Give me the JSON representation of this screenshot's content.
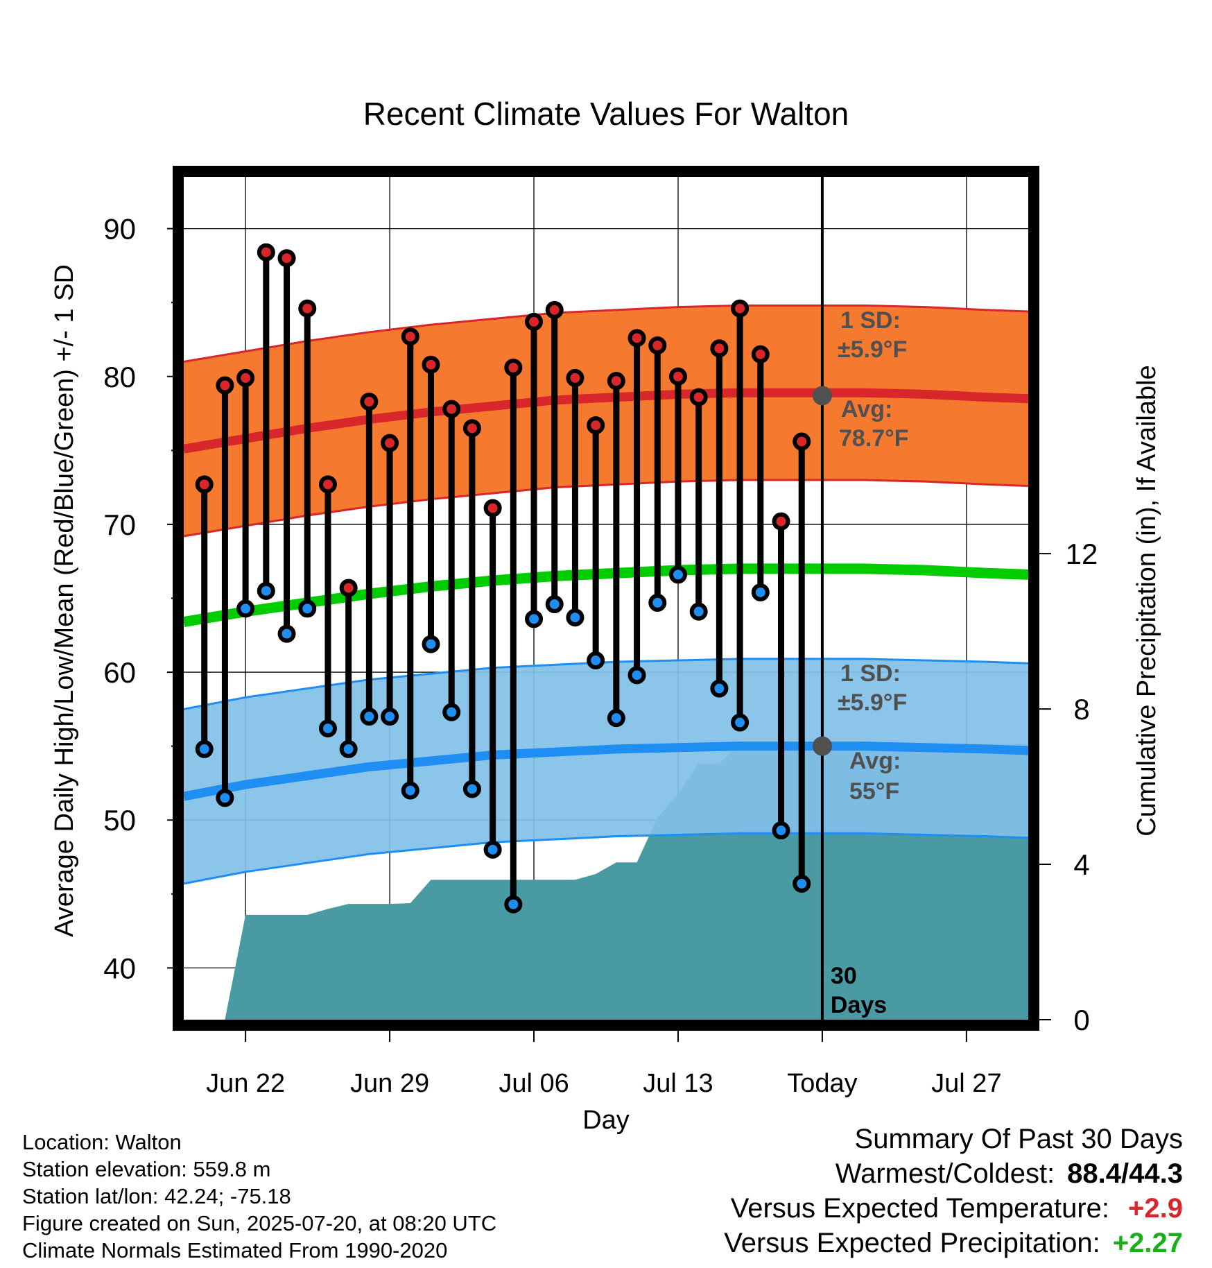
{
  "chart_data": {
    "type": "line",
    "title": "Recent Climate Values For Walton",
    "xlabel": "Day",
    "ylabel": "Average Daily High/Low/Mean (Red/Blue/Green) +/- 1 SD",
    "y2label": "Cumulative Precipitation (in), If Available",
    "ylim": [
      36.5,
      93.5
    ],
    "y2lim": [
      0,
      21.7
    ],
    "xlim": [
      "2025-06-19",
      "2025-07-30"
    ],
    "y_ticks": [
      "40",
      "50",
      "60",
      "70",
      "80",
      "90"
    ],
    "y2_ticks": [
      "0",
      "4",
      "8",
      "12"
    ],
    "x_ticks": [
      {
        "date": "2025-06-22",
        "label": "Jun 22"
      },
      {
        "date": "2025-06-29",
        "label": "Jun 29"
      },
      {
        "date": "2025-07-06",
        "label": "Jul 06"
      },
      {
        "date": "2025-07-13",
        "label": "Jul 13"
      },
      {
        "date": "2025-07-20",
        "label": "Today"
      },
      {
        "date": "2025-07-27",
        "label": "Jul 27"
      }
    ],
    "today": "2025-07-20",
    "days_label": [
      "30",
      "Days"
    ],
    "grid": true,
    "normals": {
      "dates": [
        "2025-06-19",
        "2025-06-22",
        "2025-06-25",
        "2025-06-28",
        "2025-07-01",
        "2025-07-04",
        "2025-07-07",
        "2025-07-10",
        "2025-07-13",
        "2025-07-16",
        "2025-07-19",
        "2025-07-22",
        "2025-07-25",
        "2025-07-28",
        "2025-07-30"
      ],
      "high_avg": [
        75.1,
        75.8,
        76.5,
        77.1,
        77.6,
        78.0,
        78.4,
        78.6,
        78.8,
        78.9,
        78.9,
        78.9,
        78.8,
        78.6,
        78.5
      ],
      "low_avg": [
        51.6,
        52.4,
        53.0,
        53.6,
        54.0,
        54.4,
        54.6,
        54.8,
        54.9,
        55.0,
        55.0,
        55.0,
        54.9,
        54.8,
        54.7
      ],
      "mean_avg": [
        63.4,
        64.1,
        64.7,
        65.3,
        65.8,
        66.2,
        66.5,
        66.7,
        66.9,
        67.0,
        67.0,
        67.0,
        66.9,
        66.7,
        66.6
      ],
      "high_sd": 5.9,
      "low_sd": 5.9
    },
    "high_annotation": {
      "line1": "1 SD:",
      "line2": "±5.9°F",
      "line3": "Avg:",
      "line4": "78.7°F",
      "avg_value": 78.7
    },
    "low_annotation": {
      "line1": "1 SD:",
      "line2": "±5.9°F",
      "line3": "Avg:",
      "line4": "55°F",
      "avg_value": 55
    },
    "daily": [
      {
        "date": "2025-06-20",
        "high": 72.7,
        "low": 54.8
      },
      {
        "date": "2025-06-21",
        "high": 79.4,
        "low": 51.5
      },
      {
        "date": "2025-06-22",
        "high": 79.9,
        "low": 64.3
      },
      {
        "date": "2025-06-23",
        "high": 88.4,
        "low": 65.5
      },
      {
        "date": "2025-06-24",
        "high": 88.0,
        "low": 62.6
      },
      {
        "date": "2025-06-25",
        "high": 84.6,
        "low": 64.3
      },
      {
        "date": "2025-06-26",
        "high": 72.7,
        "low": 56.2
      },
      {
        "date": "2025-06-27",
        "high": 65.7,
        "low": 54.8
      },
      {
        "date": "2025-06-28",
        "high": 78.3,
        "low": 57.0
      },
      {
        "date": "2025-06-29",
        "high": 75.5,
        "low": 57.0
      },
      {
        "date": "2025-06-30",
        "high": 82.7,
        "low": 52.0
      },
      {
        "date": "2025-07-01",
        "high": 80.8,
        "low": 61.9
      },
      {
        "date": "2025-07-02",
        "high": 77.8,
        "low": 57.3
      },
      {
        "date": "2025-07-03",
        "high": 76.5,
        "low": 52.1
      },
      {
        "date": "2025-07-04",
        "high": 71.1,
        "low": 48.0
      },
      {
        "date": "2025-07-05",
        "high": 80.6,
        "low": 44.3
      },
      {
        "date": "2025-07-06",
        "high": 83.7,
        "low": 63.6
      },
      {
        "date": "2025-07-07",
        "high": 84.5,
        "low": 64.6
      },
      {
        "date": "2025-07-08",
        "high": 79.9,
        "low": 63.7
      },
      {
        "date": "2025-07-09",
        "high": 76.7,
        "low": 60.8
      },
      {
        "date": "2025-07-10",
        "high": 79.7,
        "low": 56.9
      },
      {
        "date": "2025-07-11",
        "high": 82.6,
        "low": 59.8
      },
      {
        "date": "2025-07-12",
        "high": 82.1,
        "low": 64.7
      },
      {
        "date": "2025-07-13",
        "high": 80.0,
        "low": 66.6
      },
      {
        "date": "2025-07-14",
        "high": 78.6,
        "low": 64.1
      },
      {
        "date": "2025-07-15",
        "high": 81.9,
        "low": 58.9
      },
      {
        "date": "2025-07-16",
        "high": 84.6,
        "low": 56.6
      },
      {
        "date": "2025-07-17",
        "high": 81.5,
        "low": 65.4
      },
      {
        "date": "2025-07-18",
        "high": 70.2,
        "low": 49.3
      },
      {
        "date": "2025-07-19",
        "high": 75.6,
        "low": 45.7
      }
    ],
    "precip_cumulative": {
      "dates": [
        "2025-06-20.3",
        "2025-06-21",
        "2025-06-22",
        "2025-06-23",
        "2025-06-24",
        "2025-06-25",
        "2025-06-26",
        "2025-06-27",
        "2025-06-28",
        "2025-06-29",
        "2025-06-30",
        "2025-07-01",
        "2025-07-02",
        "2025-07-03",
        "2025-07-04",
        "2025-07-05",
        "2025-07-06",
        "2025-07-07",
        "2025-07-08",
        "2025-07-09",
        "2025-07-10",
        "2025-07-11",
        "2025-07-12",
        "2025-07-13",
        "2025-07-14",
        "2025-07-15",
        "2025-07-16",
        "2025-07-17",
        "2025-07-30"
      ],
      "values": [
        0,
        0,
        2.7,
        2.7,
        2.7,
        2.7,
        2.85,
        2.98,
        2.98,
        2.98,
        3.0,
        3.6,
        3.6,
        3.6,
        3.6,
        3.6,
        3.6,
        3.6,
        3.6,
        3.75,
        4.05,
        4.05,
        5.2,
        5.8,
        6.6,
        6.6,
        7.1,
        7.1,
        7.1
      ]
    }
  },
  "info": {
    "location": "Location: Walton",
    "elevation": "Station elevation: 559.8 m",
    "latlon": "Station lat/lon: 42.24; -75.18",
    "created": "Figure created on Sun, 2025-07-20, at 08:20 UTC",
    "normals": "Climate Normals Estimated From 1990-2020"
  },
  "summary": {
    "title": "Summary Of Past 30 Days",
    "warm_cold_label": "Warmest/Coldest:",
    "warm_cold_value": "88.4/44.3",
    "temp_label": "Versus Expected Temperature:",
    "temp_value": "+2.9",
    "precip_label": "Versus Expected Precipitation:",
    "precip_value": "+2.27"
  },
  "colors": {
    "high_band": "#f57a30",
    "high_line": "#d8262a",
    "low_band": "#82c0e8",
    "low_line": "#1e8ef2",
    "mean_line": "#00cc00",
    "precip": "#4a9aa4",
    "high_dot": "#d8262a",
    "low_dot": "#1e8ef2",
    "annotation": "#505050",
    "temp_value": "#d8262a",
    "precip_value": "#18b018"
  }
}
